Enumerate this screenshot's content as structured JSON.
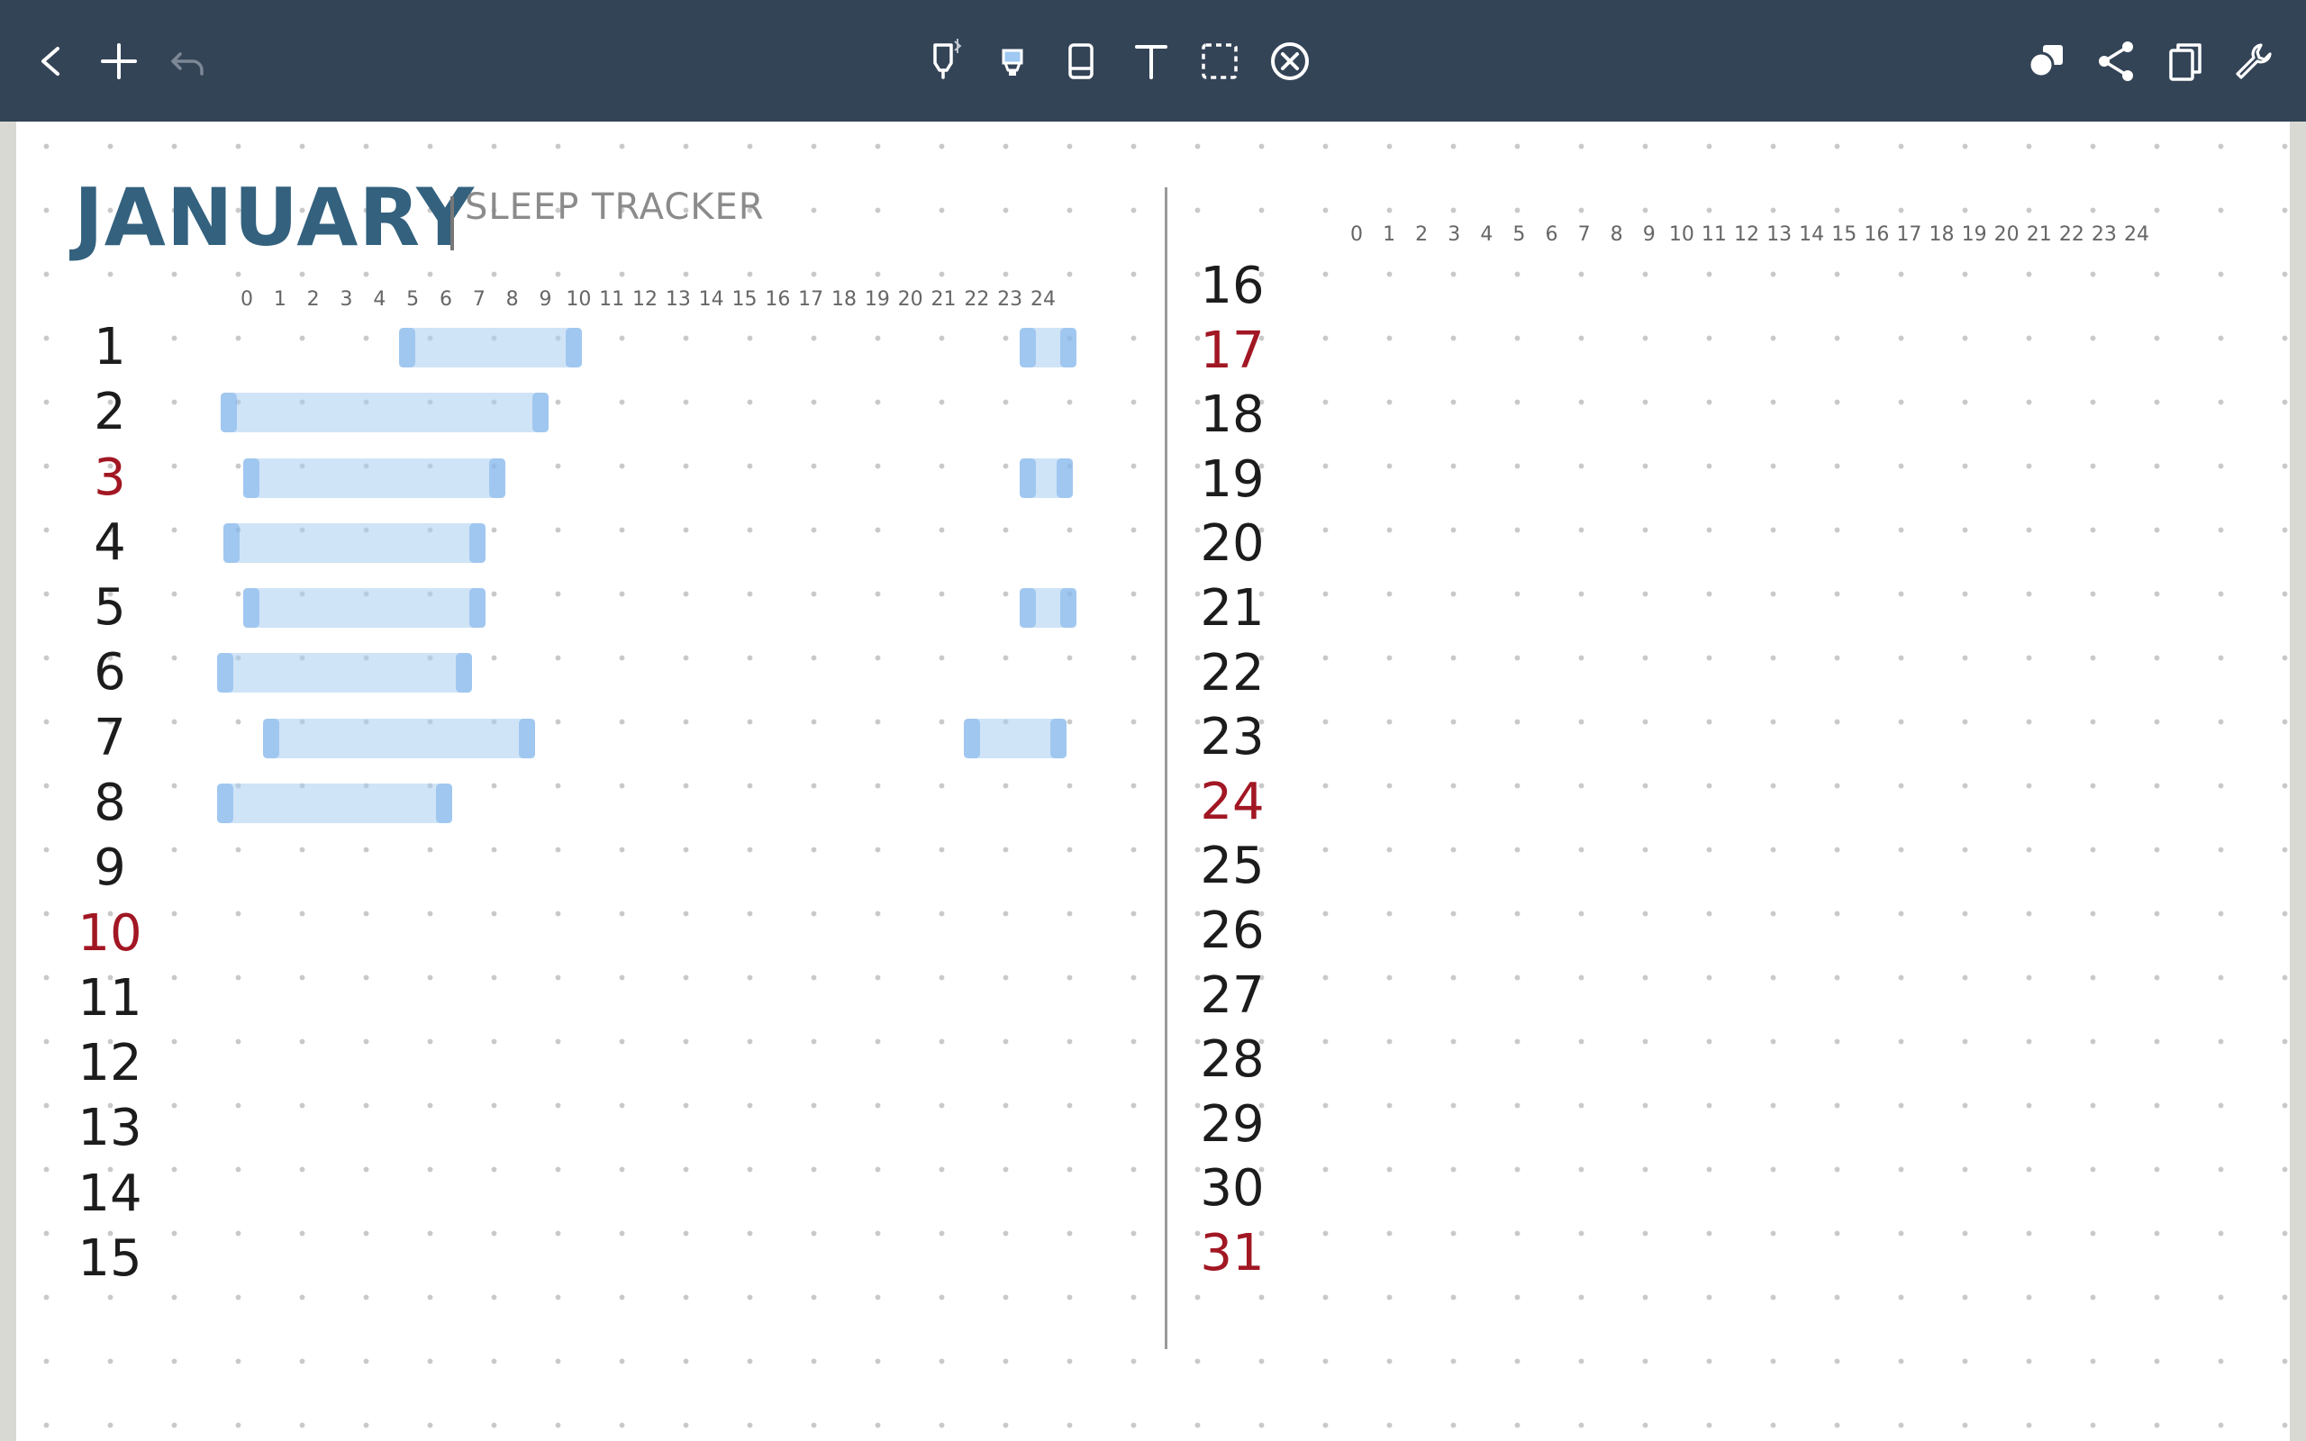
{
  "toolbar": {
    "left": [
      {
        "name": "back-icon",
        "glyph": "back"
      },
      {
        "name": "add-icon",
        "glyph": "plus"
      },
      {
        "name": "undo-icon",
        "glyph": "undo"
      }
    ],
    "center": [
      {
        "name": "pen-tool-icon",
        "glyph": "pen"
      },
      {
        "name": "highlighter-tool-icon",
        "glyph": "highlighter"
      },
      {
        "name": "eraser-tool-icon",
        "glyph": "eraser"
      },
      {
        "name": "text-tool-icon",
        "glyph": "text"
      },
      {
        "name": "lasso-select-icon",
        "glyph": "lasso"
      },
      {
        "name": "clear-icon",
        "glyph": "clear"
      }
    ],
    "right": [
      {
        "name": "shapes-icon",
        "glyph": "shapes"
      },
      {
        "name": "share-icon",
        "glyph": "share"
      },
      {
        "name": "pages-icon",
        "glyph": "pages"
      },
      {
        "name": "settings-wrench-icon",
        "glyph": "wrench"
      }
    ]
  },
  "header": {
    "title": "JANUARY",
    "subtitle": "SLEEP TRACKER"
  },
  "colors": {
    "toolbar": "#344457",
    "title": "#33617e",
    "weekend_day": "#a11723",
    "sleep_bar": "#aacdf0"
  },
  "hour_labels": [
    "0",
    "1",
    "2",
    "3",
    "4",
    "5",
    "6",
    "7",
    "8",
    "9",
    "10",
    "11",
    "12",
    "13",
    "14",
    "15",
    "16",
    "17",
    "18",
    "19",
    "20",
    "21",
    "22",
    "23",
    "24"
  ],
  "left_column": {
    "days": [
      {
        "label": "1",
        "weekend": false
      },
      {
        "label": "2",
        "weekend": false
      },
      {
        "label": "3",
        "weekend": true
      },
      {
        "label": "4",
        "weekend": false
      },
      {
        "label": "5",
        "weekend": false
      },
      {
        "label": "6",
        "weekend": false
      },
      {
        "label": "7",
        "weekend": false
      },
      {
        "label": "8",
        "weekend": false
      },
      {
        "label": "9",
        "weekend": false
      },
      {
        "label": "10",
        "weekend": true
      },
      {
        "label": "11",
        "weekend": false
      },
      {
        "label": "12",
        "weekend": false
      },
      {
        "label": "13",
        "weekend": false
      },
      {
        "label": "14",
        "weekend": false
      },
      {
        "label": "15",
        "weekend": false
      }
    ]
  },
  "right_column": {
    "days": [
      {
        "label": "16",
        "weekend": false
      },
      {
        "label": "17",
        "weekend": true
      },
      {
        "label": "18",
        "weekend": false
      },
      {
        "label": "19",
        "weekend": false
      },
      {
        "label": "20",
        "weekend": false
      },
      {
        "label": "21",
        "weekend": false
      },
      {
        "label": "22",
        "weekend": false
      },
      {
        "label": "23",
        "weekend": false
      },
      {
        "label": "24",
        "weekend": true
      },
      {
        "label": "25",
        "weekend": false
      },
      {
        "label": "26",
        "weekend": false
      },
      {
        "label": "27",
        "weekend": false
      },
      {
        "label": "28",
        "weekend": false
      },
      {
        "label": "29",
        "weekend": false
      },
      {
        "label": "30",
        "weekend": false
      },
      {
        "label": "31",
        "weekend": true
      }
    ]
  },
  "sleep_entries": [
    {
      "day": "1",
      "segments": [
        {
          "start": 4.6,
          "end": 10.1
        },
        {
          "start": 23.3,
          "end": 25
        }
      ]
    },
    {
      "day": "2",
      "segments": [
        {
          "start": -0.8,
          "end": 9.1
        }
      ]
    },
    {
      "day": "3",
      "segments": [
        {
          "start": -0.1,
          "end": 7.8
        },
        {
          "start": 23.3,
          "end": 24.9
        }
      ]
    },
    {
      "day": "4",
      "segments": [
        {
          "start": -0.7,
          "end": 7.2
        }
      ]
    },
    {
      "day": "5",
      "segments": [
        {
          "start": -0.1,
          "end": 7.2
        },
        {
          "start": 23.3,
          "end": 25
        }
      ]
    },
    {
      "day": "6",
      "segments": [
        {
          "start": -0.9,
          "end": 6.8
        }
      ]
    },
    {
      "day": "7",
      "segments": [
        {
          "start": 0.5,
          "end": 8.7
        },
        {
          "start": 21.6,
          "end": 24.7
        }
      ]
    },
    {
      "day": "8",
      "segments": [
        {
          "start": -0.9,
          "end": 6.2
        }
      ]
    }
  ]
}
